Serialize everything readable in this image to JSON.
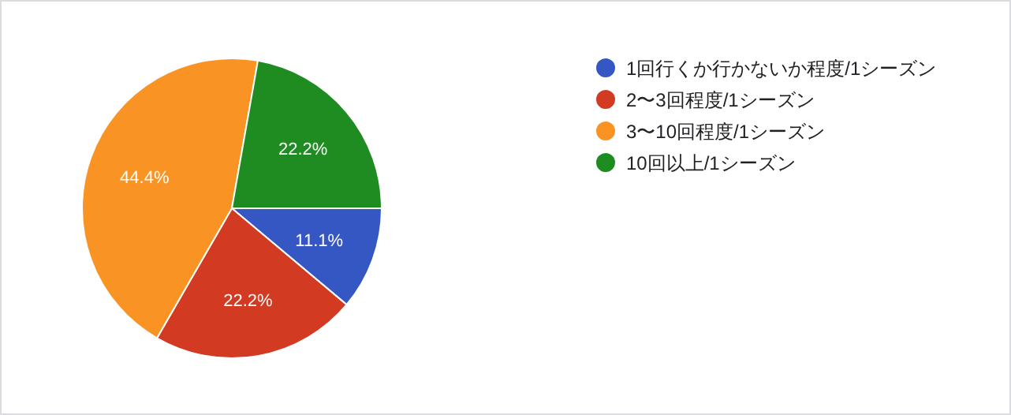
{
  "chart_data": {
    "type": "pie",
    "categories": [
      "1回行くか行かないか程度/1シーズン",
      "2〜3回程度/1シーズン",
      "3〜10回程度/1シーズン",
      "10回以上/1シーズン"
    ],
    "values": [
      11.1,
      22.2,
      44.4,
      22.2
    ],
    "colors": [
      "#3557c4",
      "#d23a22",
      "#f99424",
      "#1f8c22"
    ],
    "value_labels": [
      "11.1%",
      "22.2%",
      "44.4%",
      "22.2%"
    ],
    "legend": "right"
  }
}
